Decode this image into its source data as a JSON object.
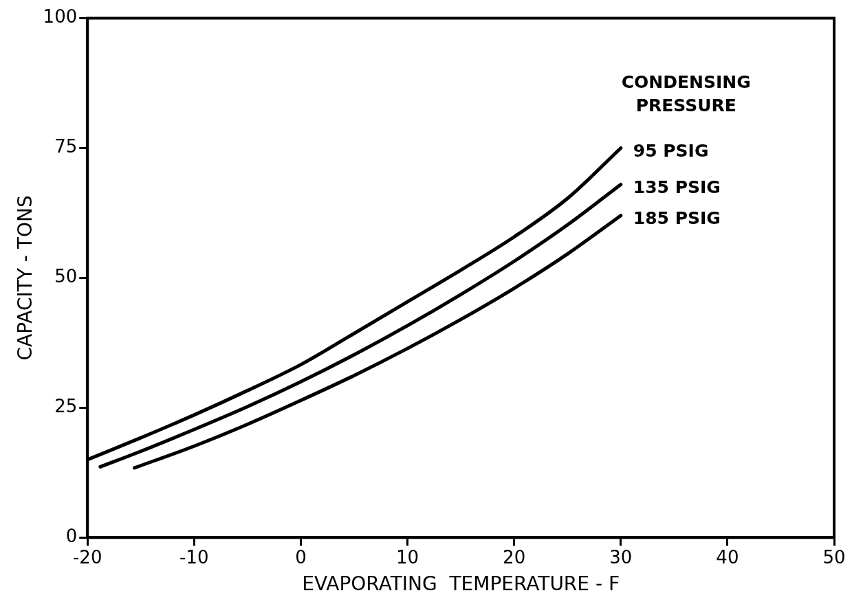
{
  "chart_data": {
    "type": "line",
    "xlabel": "EVAPORATING  TEMPERATURE - F",
    "ylabel": "CAPACITY - TONS",
    "legend_title": "CONDENSING PRESSURE",
    "xlim": [
      -20,
      50
    ],
    "xticks": [
      -20,
      -10,
      0,
      10,
      20,
      30,
      40,
      50
    ],
    "ylim": [
      0,
      100
    ],
    "yticks": [
      0,
      25,
      50,
      75,
      100
    ],
    "grid": false,
    "legend": false,
    "marker": "none",
    "line_style": "solid",
    "series": [
      {
        "name": "95 PSIG",
        "color": "#000000",
        "x": [
          -20,
          -15,
          -10,
          -5,
          0,
          5,
          10,
          15,
          20,
          25,
          30
        ],
        "values": [
          15,
          19.2,
          23.6,
          28.3,
          33.3,
          39.3,
          45.4,
          51.5,
          57.9,
          65.3,
          75
        ]
      },
      {
        "name": "135 PSIG",
        "color": "#000000",
        "x": [
          -18.8,
          -15,
          -10,
          -5,
          0,
          5,
          10,
          15,
          20,
          25,
          30
        ],
        "values": [
          13.6,
          16.6,
          20.8,
          25.2,
          30,
          35.2,
          40.8,
          46.8,
          53.2,
          60.2,
          68
        ]
      },
      {
        "name": "185 PSIG",
        "color": "#000000",
        "x": [
          -15.6,
          -10,
          -5,
          0,
          5,
          10,
          15,
          20,
          25,
          30
        ],
        "values": [
          13.4,
          17.6,
          21.8,
          26.4,
          31.2,
          36.4,
          42,
          48,
          54.6,
          62
        ]
      }
    ]
  }
}
